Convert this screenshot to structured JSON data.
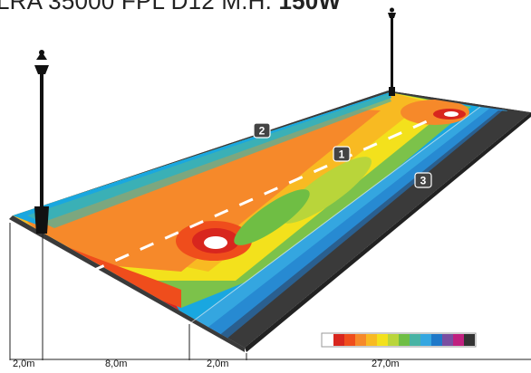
{
  "title": {
    "prefix": "LRA 35000 FPL D12 M.H.",
    "power": "150W"
  },
  "markers": [
    {
      "label": "2"
    },
    {
      "label": "1"
    },
    {
      "label": "3"
    }
  ],
  "dimensions": [
    {
      "label": "2,0m"
    },
    {
      "label": "8,0m"
    },
    {
      "label": "2,0m"
    },
    {
      "label": "27,0m"
    }
  ],
  "legend": {
    "colors": [
      "#ffffff",
      "#d8261e",
      "#ef4d1c",
      "#f6892a",
      "#f8ba22",
      "#f3e11c",
      "#b9d53a",
      "#6fbe44",
      "#48b3a4",
      "#34a6e0",
      "#1f78c8",
      "#7a4ea1",
      "#c0207f",
      "#333333"
    ]
  }
}
